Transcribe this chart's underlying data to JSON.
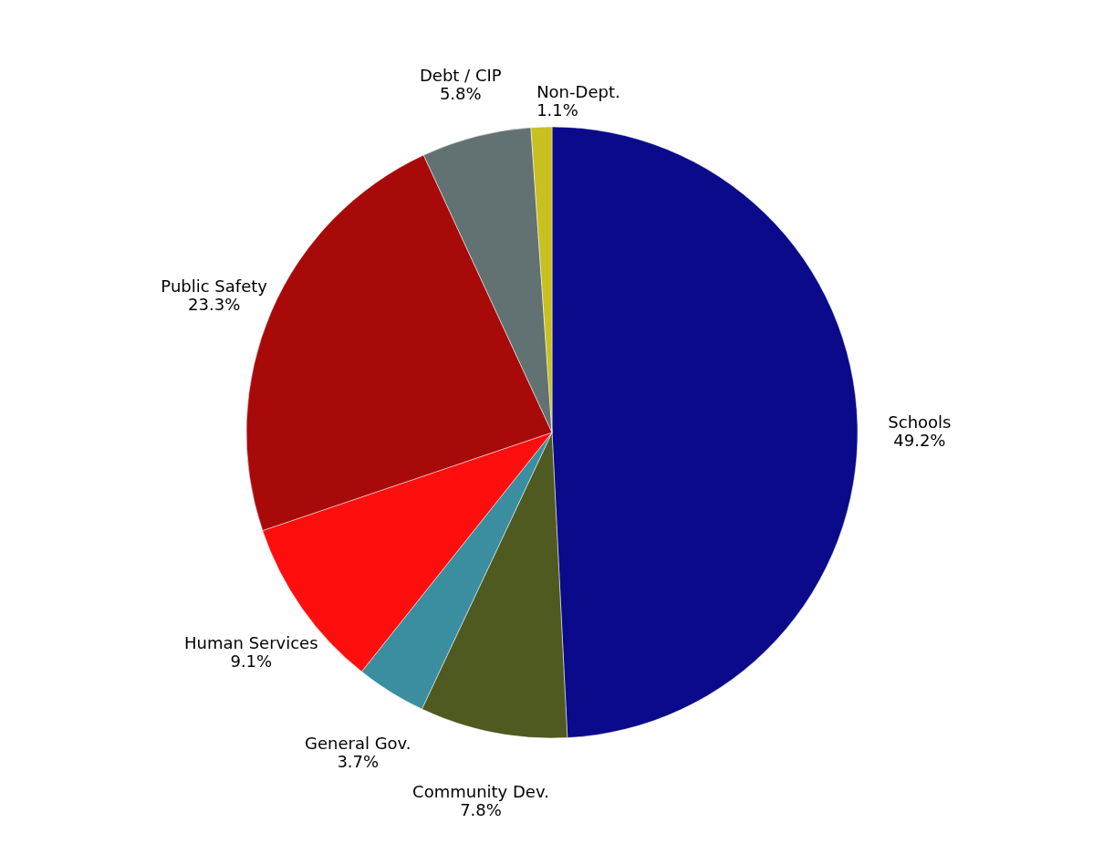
{
  "chart_data": {
    "type": "pie",
    "categories": [
      "Schools",
      "Community Dev.",
      "General Gov.",
      "Human Services",
      "Public Safety",
      "Debt / CIP",
      "Non-Dept."
    ],
    "values": [
      49.2,
      7.8,
      3.7,
      9.1,
      23.3,
      5.8,
      1.1
    ],
    "value_labels": [
      "49.2%",
      "7.8%",
      "3.7%",
      "9.1%",
      "23.3%",
      "5.8%",
      "1.1%"
    ],
    "colors": [
      "#0a0a8a",
      "#4f5a20",
      "#3a8ea0",
      "#ff0e0e",
      "#a80a0a",
      "#627272",
      "#c8c020"
    ]
  }
}
